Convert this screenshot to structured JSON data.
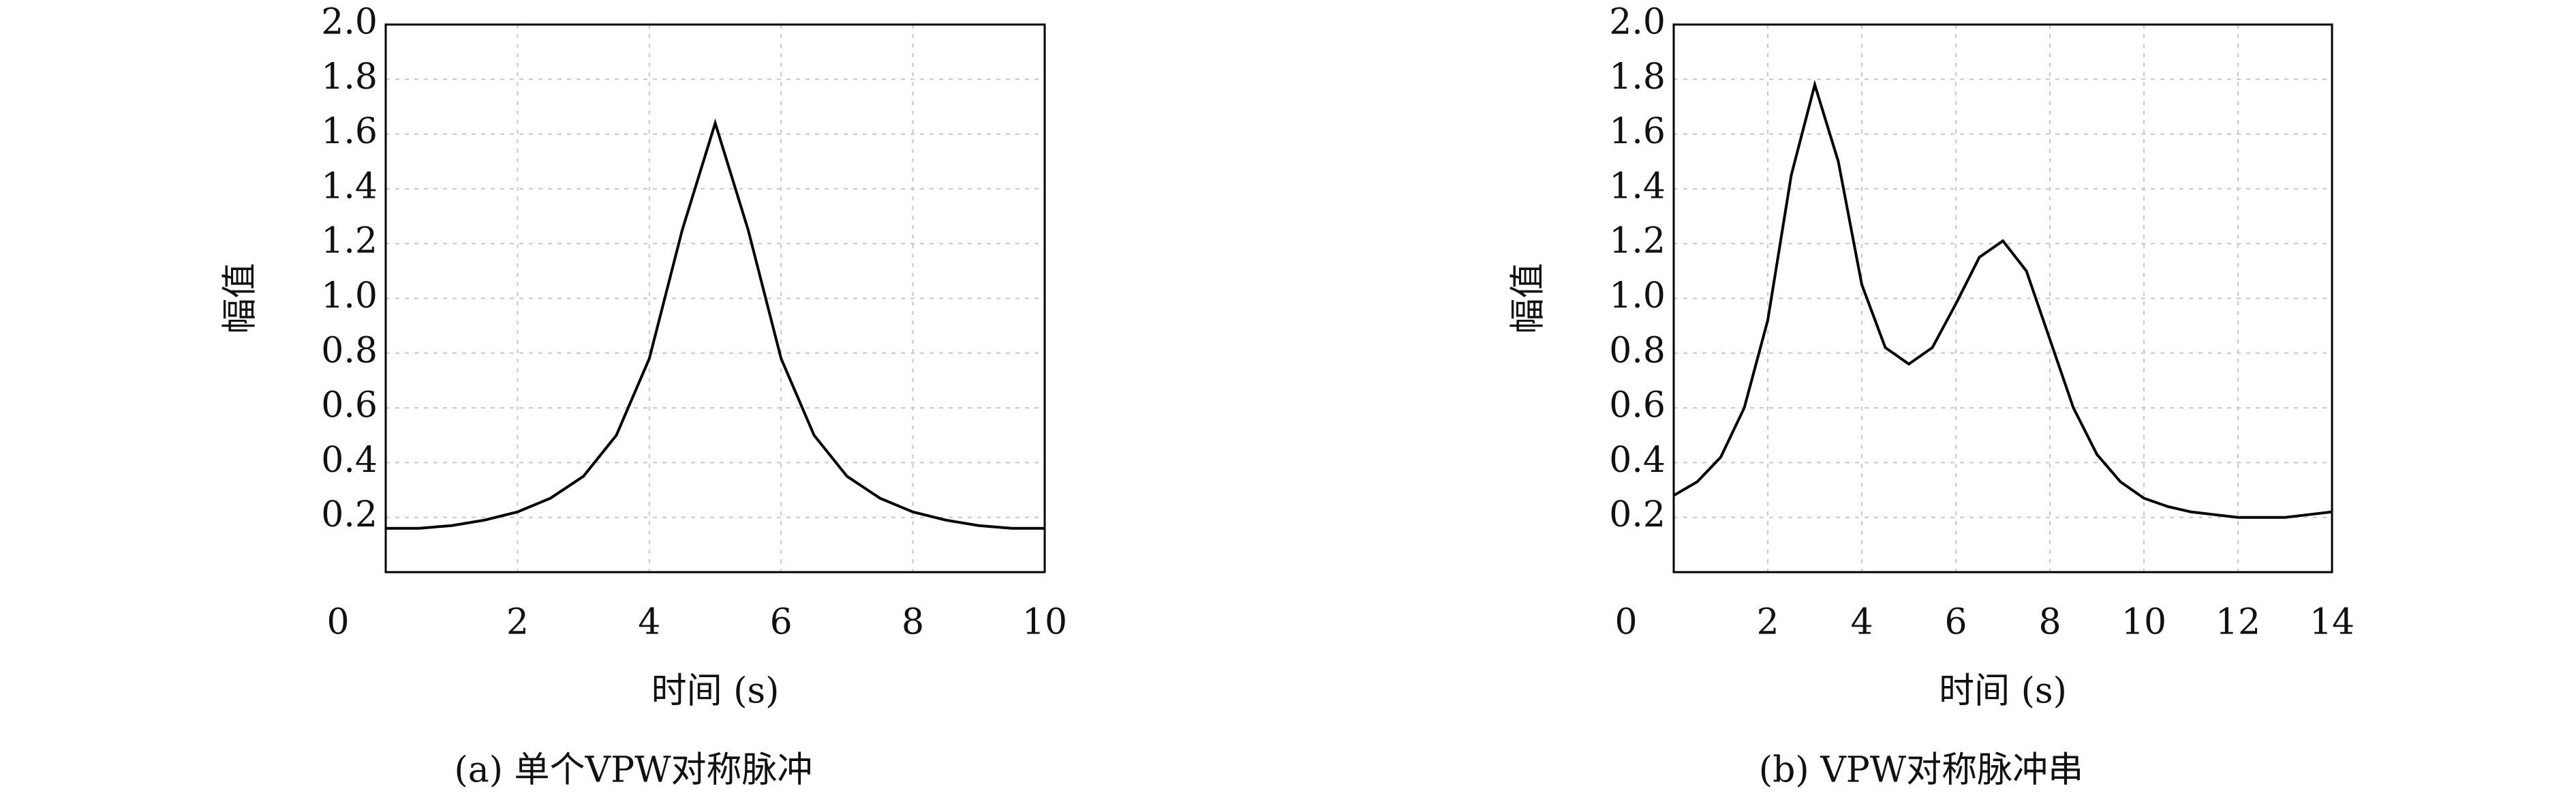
{
  "chart_data": [
    {
      "type": "line",
      "caption": "(a) 单个VPW对称脉冲",
      "xlabel": "时间 (s)",
      "ylabel": "幅值",
      "color": "#000000",
      "grid": true,
      "x": [
        0,
        0.5,
        1,
        1.5,
        2,
        2.5,
        3,
        3.5,
        4,
        4.5,
        5,
        5.5,
        6,
        6.5,
        7,
        7.5,
        8,
        8.5,
        9,
        9.5,
        10
      ],
      "values": [
        0.16,
        0.16,
        0.17,
        0.19,
        0.22,
        0.27,
        0.35,
        0.5,
        0.78,
        1.25,
        1.64,
        1.25,
        0.78,
        0.5,
        0.35,
        0.27,
        0.22,
        0.19,
        0.17,
        0.16,
        0.16
      ],
      "xlim": [
        0,
        10
      ],
      "xticks": [
        0,
        2,
        4,
        6,
        8,
        10
      ],
      "ylim": [
        0,
        2
      ],
      "yticks": [
        0.2,
        0.4,
        0.6,
        0.8,
        {
          "value": 1,
          "label": "1.0"
        },
        1.2,
        1.4,
        1.6,
        1.8,
        {
          "value": 2,
          "label": "2.0"
        }
      ]
    },
    {
      "type": "line",
      "caption": "(b) VPW对称脉冲串",
      "xlabel": "时间 (s)",
      "ylabel": "幅值",
      "color": "#000000",
      "grid": true,
      "x": [
        0,
        0.5,
        1,
        1.5,
        2,
        2.5,
        3,
        3.5,
        4,
        4.5,
        5,
        5.5,
        6,
        6.5,
        7,
        7.5,
        8,
        8.5,
        9,
        9.5,
        10,
        10.5,
        11,
        11.5,
        12,
        12.5,
        13,
        13.5,
        14
      ],
      "values": [
        0.28,
        0.33,
        0.42,
        0.6,
        0.92,
        1.45,
        1.78,
        1.5,
        1.05,
        0.82,
        0.76,
        0.82,
        0.98,
        1.15,
        1.21,
        1.1,
        0.85,
        0.6,
        0.43,
        0.33,
        0.27,
        0.24,
        0.22,
        0.21,
        0.2,
        0.2,
        0.2,
        0.21,
        0.22
      ],
      "xlim": [
        0,
        14
      ],
      "xticks": [
        0,
        2,
        4,
        6,
        8,
        10,
        12,
        14
      ],
      "ylim": [
        0,
        2
      ],
      "yticks": [
        0.2,
        0.4,
        0.6,
        0.8,
        {
          "value": 1,
          "label": "1.0"
        },
        1.2,
        1.4,
        1.6,
        1.8,
        {
          "value": 2,
          "label": "2.0"
        }
      ]
    }
  ]
}
